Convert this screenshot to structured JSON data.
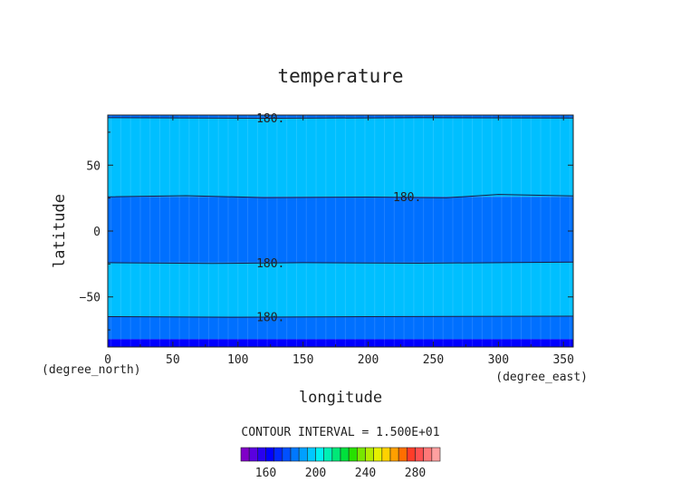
{
  "chart_data": {
    "type": "heatmap",
    "title": "temperature",
    "xlabel": "longitude",
    "ylabel": "latitude",
    "x_units": "(degree_east)",
    "y_units": "(degree_north)",
    "xlim": [
      0,
      357.5
    ],
    "ylim": [
      -88,
      88
    ],
    "x_ticks": [
      0,
      50,
      100,
      150,
      200,
      250,
      300,
      350
    ],
    "y_ticks": [
      50,
      0,
      -50
    ],
    "bands": [
      {
        "lat_from": 88,
        "lat_to": 86,
        "value": 172
      },
      {
        "lat_from": 86,
        "lat_to": 26,
        "value": 190
      },
      {
        "lat_from": 26,
        "lat_to": -24,
        "value": 175
      },
      {
        "lat_from": -24,
        "lat_to": -65,
        "value": 190
      },
      {
        "lat_from": -65,
        "lat_to": -82,
        "value": 175
      },
      {
        "lat_from": -82,
        "lat_to": -88,
        "value": 165
      }
    ],
    "contours": [
      {
        "value": 180,
        "label": "180.",
        "points": [
          [
            0,
            86
          ],
          [
            120,
            85.6
          ],
          [
            240,
            86
          ],
          [
            357.5,
            85.8
          ]
        ],
        "label_at": [
          125,
          86
        ]
      },
      {
        "value": 180,
        "label": "180.",
        "points": [
          [
            0,
            26
          ],
          [
            60,
            26.8
          ],
          [
            120,
            25.4
          ],
          [
            200,
            25.8
          ],
          [
            260,
            25.2
          ],
          [
            300,
            27.8
          ],
          [
            357.5,
            26.6
          ]
        ],
        "label_at": [
          230,
          26
        ]
      },
      {
        "value": 180,
        "label": "180.",
        "points": [
          [
            0,
            -24
          ],
          [
            80,
            -24.6
          ],
          [
            150,
            -24
          ],
          [
            240,
            -24.4
          ],
          [
            357.5,
            -23.6
          ]
        ],
        "label_at": [
          125,
          -24
        ]
      },
      {
        "value": 180,
        "label": "180.",
        "points": [
          [
            0,
            -65
          ],
          [
            100,
            -65.4
          ],
          [
            200,
            -65
          ],
          [
            357.5,
            -64.6
          ]
        ],
        "label_at": [
          125,
          -65
        ]
      }
    ],
    "colorbar": {
      "label": "CONTOUR INTERVAL = 1.500E+01",
      "ticks": [
        "160",
        "200",
        "240",
        "280"
      ],
      "tick_values": [
        160,
        200,
        240,
        280
      ],
      "range": [
        140,
        300
      ],
      "colors": [
        "#8000c8",
        "#5a00e0",
        "#2800f0",
        "#0000ff",
        "#0028ff",
        "#0050ff",
        "#0078ff",
        "#00a0ff",
        "#00c8ff",
        "#00f0f0",
        "#00f0b4",
        "#00e878",
        "#00e03c",
        "#28e000",
        "#78e600",
        "#b4ec00",
        "#e6f000",
        "#ffd200",
        "#ffa000",
        "#ff6e00",
        "#ff3c28",
        "#ff5050",
        "#ff7878",
        "#ffa0a0"
      ]
    },
    "band_colors": [
      {
        "max": 170,
        "color": "#0000ff"
      },
      {
        "max": 180,
        "color": "#0070ff"
      },
      {
        "max": 195,
        "color": "#00bfff"
      }
    ]
  }
}
